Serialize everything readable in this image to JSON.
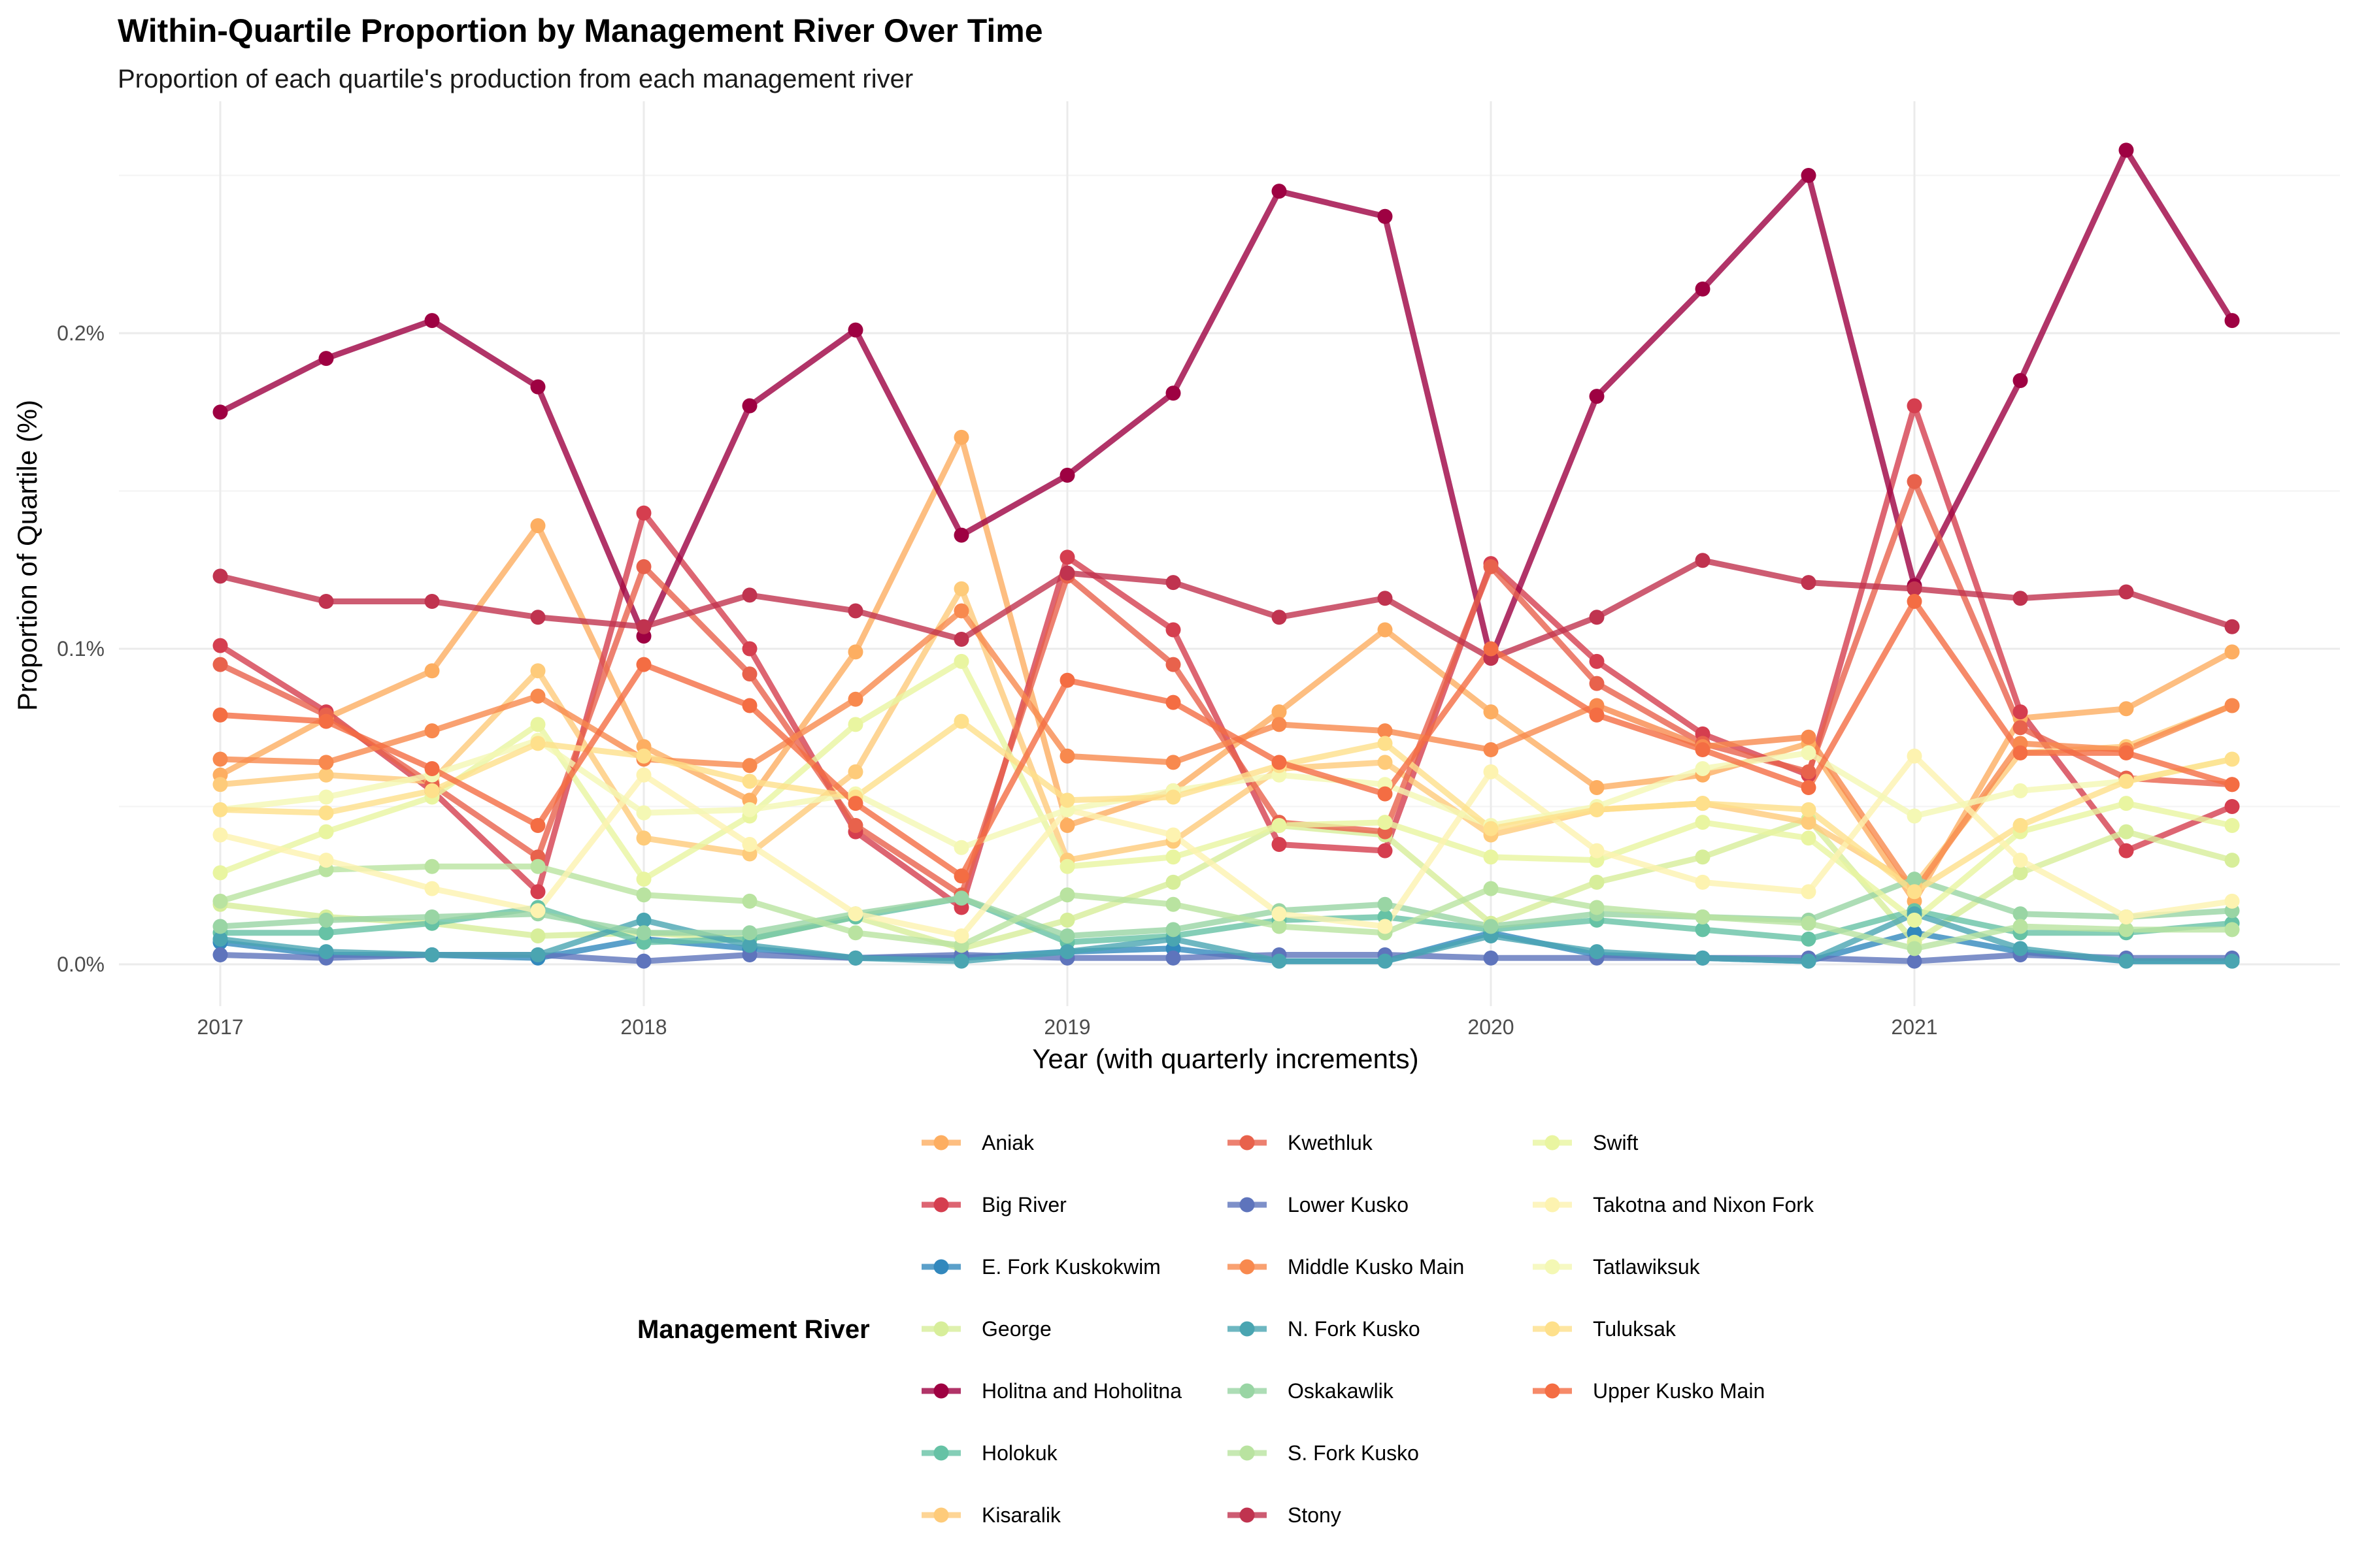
{
  "chart_data": {
    "type": "line",
    "title": "Within-Quartile Proportion by Management River Over Time",
    "subtitle": "Proportion of each quartile's production from each management river",
    "xlabel": "Year (with quarterly increments)",
    "ylabel": "Proportion of Quartile (%)",
    "xlim": [
      2016.86,
      2021.94
    ],
    "ylim": [
      -0.00013,
      0.00262
    ],
    "x_ticks": [
      2017,
      2018,
      2019,
      2020,
      2021
    ],
    "x_tick_labels": [
      "2017",
      "2018",
      "2019",
      "2020",
      "2021"
    ],
    "y_ticks": [
      0,
      0.001,
      0.002
    ],
    "y_tick_labels": [
      "0.0%",
      "0.1%",
      "0.2%"
    ],
    "y_minor_ticks": [
      0.0005,
      0.0015,
      0.0025
    ],
    "x": [
      2017,
      2017.25,
      2017.5,
      2017.75,
      2018,
      2018.25,
      2018.5,
      2018.75,
      2019,
      2019.25,
      2019.5,
      2019.75,
      2020,
      2020.25,
      2020.5,
      2020.75,
      2021,
      2021.25,
      2021.5,
      2021.75
    ],
    "legend_title": "Management River",
    "legend_position": "bottom",
    "series": [
      {
        "name": "Aniak",
        "color": "#FDAE61",
        "values": [
          0.0006,
          0.00078,
          0.00093,
          0.00139,
          0.00069,
          0.00052,
          0.00099,
          0.00167,
          0.00044,
          0.00055,
          0.0008,
          0.00106,
          0.0008,
          0.00056,
          0.0006,
          0.0007,
          0.0002,
          0.00078,
          0.00081,
          0.00099
        ]
      },
      {
        "name": "Big River",
        "color": "#D53E4F",
        "values": [
          0.00101,
          0.0008,
          0.00055,
          0.00023,
          0.00143,
          0.001,
          0.00042,
          0.00018,
          0.00129,
          0.00106,
          0.00038,
          0.00036,
          0.00127,
          0.00096,
          0.00073,
          0.0006,
          0.00177,
          0.0008,
          0.00036,
          0.0005
        ]
      },
      {
        "name": "E. Fork Kuskokwim",
        "color": "#3288BD",
        "values": [
          7e-05,
          3e-05,
          3e-05,
          2e-05,
          8e-05,
          5e-05,
          2e-05,
          2e-05,
          4e-05,
          5e-05,
          1e-05,
          1e-05,
          0.0001,
          3e-05,
          2e-05,
          1e-05,
          0.0001,
          4e-05,
          1e-05,
          1e-05
        ]
      },
      {
        "name": "George",
        "color": "#D7EE9A",
        "values": [
          0.00019,
          0.00015,
          0.00013,
          9e-05,
          0.0001,
          8e-05,
          0.00015,
          5e-05,
          0.00014,
          0.00026,
          0.00044,
          0.00041,
          0.00013,
          0.00026,
          0.00034,
          0.00046,
          7e-05,
          0.00029,
          0.00042,
          0.00033
        ]
      },
      {
        "name": "Holitna and Hoholitna",
        "color": "#9E0142",
        "values": [
          0.00175,
          0.00192,
          0.00204,
          0.00183,
          0.00104,
          0.00177,
          0.00201,
          0.00136,
          0.00155,
          0.00181,
          0.00245,
          0.00237,
          0.00097,
          0.0018,
          0.00214,
          0.0025,
          0.0012,
          0.00185,
          0.00258,
          0.00204
        ]
      },
      {
        "name": "Holokuk",
        "color": "#66C2A5",
        "values": [
          0.0001,
          0.0001,
          0.00013,
          0.00018,
          7e-05,
          8e-05,
          0.00015,
          0.00021,
          7e-05,
          9e-05,
          0.00014,
          0.00015,
          0.00011,
          0.00014,
          0.00011,
          8e-05,
          0.00017,
          0.0001,
          0.0001,
          0.00013
        ]
      },
      {
        "name": "Kisaralik",
        "color": "#FECB7A",
        "values": [
          0.00057,
          0.0006,
          0.00058,
          0.00093,
          0.0004,
          0.00035,
          0.00061,
          0.00119,
          0.00033,
          0.00039,
          0.00062,
          0.00064,
          0.00041,
          0.00049,
          0.00051,
          0.00045,
          0.00025,
          0.00067,
          0.00069,
          0.00082
        ]
      },
      {
        "name": "Kwethluk",
        "color": "#E8624C",
        "values": [
          0.00095,
          0.00079,
          0.00057,
          0.00034,
          0.00126,
          0.00092,
          0.00044,
          0.00022,
          0.00123,
          0.00095,
          0.00045,
          0.00042,
          0.00126,
          0.00089,
          0.0007,
          0.00061,
          0.00153,
          0.00075,
          0.00059,
          0.00057
        ]
      },
      {
        "name": "Lower Kusko",
        "color": "#5E74BC",
        "values": [
          3e-05,
          2e-05,
          3e-05,
          3e-05,
          1e-05,
          3e-05,
          2e-05,
          3e-05,
          2e-05,
          2e-05,
          3e-05,
          3e-05,
          2e-05,
          2e-05,
          2e-05,
          2e-05,
          1e-05,
          3e-05,
          2e-05,
          2e-05
        ]
      },
      {
        "name": "Middle Kusko Main",
        "color": "#F8894E",
        "values": [
          0.00065,
          0.00064,
          0.00074,
          0.00085,
          0.00065,
          0.00063,
          0.00084,
          0.00112,
          0.00066,
          0.00064,
          0.00076,
          0.00074,
          0.00068,
          0.00082,
          0.00069,
          0.00072,
          0.00023,
          0.0007,
          0.00068,
          0.00082
        ]
      },
      {
        "name": "N. Fork Kusko",
        "color": "#4AA5B1",
        "values": [
          8e-05,
          4e-05,
          3e-05,
          3e-05,
          0.00014,
          6e-05,
          2e-05,
          1e-05,
          4e-05,
          8e-05,
          1e-05,
          1e-05,
          9e-05,
          4e-05,
          2e-05,
          1e-05,
          0.00016,
          5e-05,
          1e-05,
          1e-05
        ]
      },
      {
        "name": "Oskakawlik",
        "color": "#99D5A4",
        "values": [
          0.00012,
          0.00014,
          0.00015,
          0.00016,
          0.0001,
          0.0001,
          0.00016,
          0.00021,
          9e-05,
          0.00011,
          0.00017,
          0.00019,
          0.00012,
          0.00016,
          0.00015,
          0.00014,
          0.00027,
          0.00016,
          0.00015,
          0.00017
        ]
      },
      {
        "name": "S. Fork Kusko",
        "color": "#B9E3A0",
        "values": [
          0.0002,
          0.0003,
          0.00031,
          0.00031,
          0.00022,
          0.0002,
          0.0001,
          6e-05,
          0.00022,
          0.00019,
          0.00012,
          0.0001,
          0.00024,
          0.00018,
          0.00015,
          0.00013,
          5e-05,
          0.00012,
          0.00011,
          0.00011
        ]
      },
      {
        "name": "Stony",
        "color": "#C0334F",
        "values": [
          0.00123,
          0.00115,
          0.00115,
          0.0011,
          0.00107,
          0.00117,
          0.00112,
          0.00103,
          0.00124,
          0.00121,
          0.0011,
          0.00116,
          0.00097,
          0.0011,
          0.00128,
          0.00121,
          0.00119,
          0.00116,
          0.00118,
          0.00107
        ]
      },
      {
        "name": "Swift",
        "color": "#E9F5A0",
        "values": [
          0.00029,
          0.00042,
          0.00053,
          0.00076,
          0.00027,
          0.00047,
          0.00076,
          0.00096,
          0.00031,
          0.00034,
          0.00044,
          0.00045,
          0.00034,
          0.00033,
          0.00045,
          0.0004,
          0.00014,
          0.00042,
          0.00051,
          0.00044
        ]
      },
      {
        "name": "Takotna and Nixon Fork",
        "color": "#FDF3B0",
        "values": [
          0.00041,
          0.00033,
          0.00024,
          0.00017,
          0.0006,
          0.00038,
          0.00016,
          9e-05,
          0.00049,
          0.00041,
          0.00016,
          0.00012,
          0.00061,
          0.00036,
          0.00026,
          0.00023,
          0.00066,
          0.00033,
          0.00015,
          0.0002
        ]
      },
      {
        "name": "Tatlawiksuk",
        "color": "#F4F8B4",
        "values": [
          0.00049,
          0.00053,
          0.0006,
          0.00071,
          0.00048,
          0.00049,
          0.00054,
          0.00037,
          0.00049,
          0.00055,
          0.0006,
          0.00057,
          0.00044,
          0.0005,
          0.00062,
          0.00067,
          0.00047,
          0.00055,
          0.00058,
          0.00065
        ]
      },
      {
        "name": "Tuluksak",
        "color": "#FEE08B",
        "values": [
          0.00049,
          0.00048,
          0.00055,
          0.0007,
          0.00066,
          0.00058,
          0.00053,
          0.00077,
          0.00052,
          0.00053,
          0.00063,
          0.0007,
          0.00043,
          0.00049,
          0.00051,
          0.00049,
          0.00023,
          0.00044,
          0.00058,
          0.00065
        ]
      },
      {
        "name": "Upper Kusko Main",
        "color": "#F46D43",
        "values": [
          0.00079,
          0.00077,
          0.00062,
          0.00044,
          0.00095,
          0.00082,
          0.00051,
          0.00028,
          0.0009,
          0.00083,
          0.00064,
          0.00054,
          0.001,
          0.00079,
          0.00068,
          0.00056,
          0.00115,
          0.00067,
          0.00067,
          0.00057
        ]
      }
    ]
  }
}
